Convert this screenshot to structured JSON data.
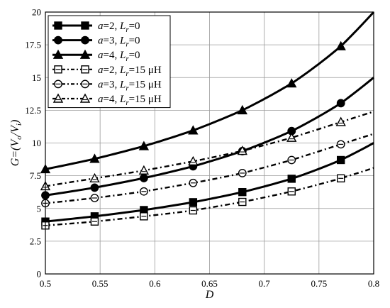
{
  "chart_data": {
    "type": "line",
    "xlabel": "D",
    "ylabel": "G=(V_o/V_i)",
    "xlim": [
      0.5,
      0.8
    ],
    "ylim": [
      0,
      20
    ],
    "xticks": [
      "0.5",
      "0.55",
      "0.6",
      "0.65",
      "0.7",
      "0.75",
      "0.8"
    ],
    "yticks": [
      "0",
      "2.5",
      "5",
      "7.5",
      "10",
      "12.5",
      "15",
      "17.5",
      "20"
    ],
    "grid": true,
    "legend_position": "top-left",
    "marker_x": [
      0.5,
      0.545,
      0.59,
      0.635,
      0.68,
      0.725,
      0.77
    ],
    "series": [
      {
        "name": "a=2, L_r=0",
        "legend": {
          "var": "a",
          "eq": "=2, ",
          "sym": "L",
          "sub": "r",
          "rest": "=0"
        },
        "marker": "square",
        "filled": true,
        "dash": "solid",
        "values": [
          4.0,
          4.4,
          4.88,
          5.48,
          6.25,
          7.27,
          8.7
        ],
        "end": 10.0
      },
      {
        "name": "a=3, L_r=0",
        "legend": {
          "var": "a",
          "eq": "=3, ",
          "sym": "L",
          "sub": "r",
          "rest": "=0"
        },
        "marker": "circle",
        "filled": true,
        "dash": "solid",
        "values": [
          6.0,
          6.59,
          7.32,
          8.22,
          9.38,
          10.91,
          13.04
        ],
        "end": 15.0
      },
      {
        "name": "a=4, L_r=0",
        "legend": {
          "var": "a",
          "eq": "=4, ",
          "sym": "L",
          "sub": "r",
          "rest": "=0"
        },
        "marker": "triangle",
        "filled": true,
        "dash": "solid",
        "values": [
          8.0,
          8.79,
          9.76,
          10.96,
          12.5,
          14.55,
          17.39
        ],
        "end": 20.0
      },
      {
        "name": "a=2, L_r=15 μH",
        "legend": {
          "var": "a",
          "eq": "=2, ",
          "sym": "L",
          "sub": "r",
          "rest": "=15 μH"
        },
        "marker": "square",
        "filled": false,
        "dash": "dashdot",
        "values": [
          3.7,
          4.0,
          4.4,
          4.85,
          5.5,
          6.3,
          7.3
        ],
        "end": 8.1
      },
      {
        "name": "a=3, L_r=15 μH",
        "legend": {
          "var": "a",
          "eq": "=3, ",
          "sym": "L",
          "sub": "r",
          "rest": "=15 μH"
        },
        "marker": "circle",
        "filled": false,
        "dash": "dashdot",
        "values": [
          5.4,
          5.8,
          6.3,
          6.95,
          7.7,
          8.7,
          9.9
        ],
        "end": 10.7
      },
      {
        "name": "a=4, L_r=15 μH",
        "legend": {
          "var": "a",
          "eq": "=4, ",
          "sym": "L",
          "sub": "r",
          "rest": "=15 μH"
        },
        "marker": "triangle",
        "filled": false,
        "dash": "dashdot",
        "values": [
          6.7,
          7.3,
          7.9,
          8.6,
          9.4,
          10.4,
          11.6
        ],
        "end": 12.4
      }
    ]
  }
}
